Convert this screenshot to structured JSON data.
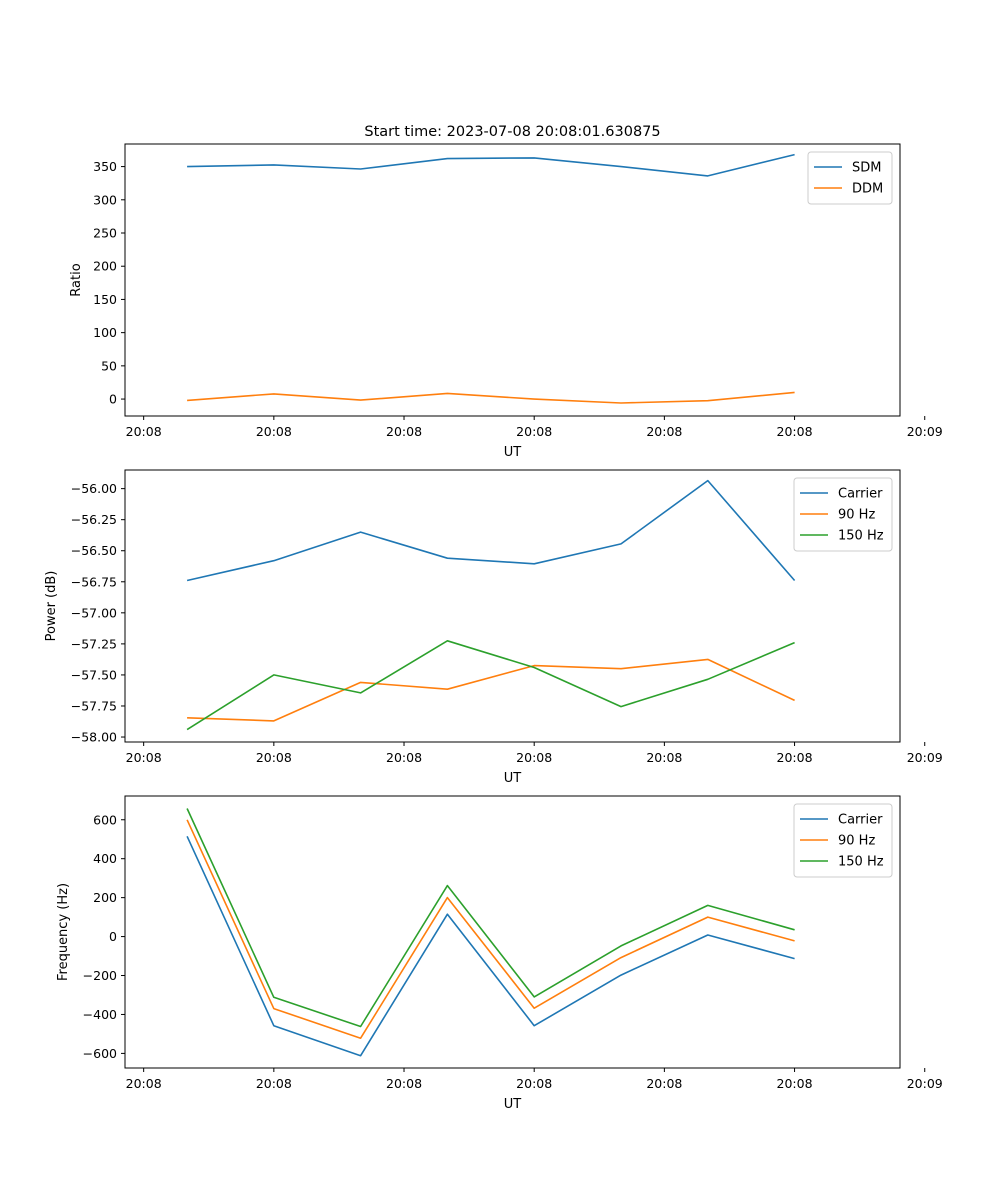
{
  "figure_title": "Start time: 2023-07-08 20:08:01.630875",
  "colors": {
    "blue": "#1f77b4",
    "orange": "#ff7f0e",
    "green": "#2ca02c"
  },
  "chart_data": [
    {
      "type": "line",
      "title": "Start time: 2023-07-08 20:08:01.630875",
      "xlabel": "UT",
      "ylabel": "Ratio",
      "x": [
        1,
        2,
        3,
        4,
        5,
        6,
        7,
        8
      ],
      "xlim": [
        0.285,
        9.215
      ],
      "xticks": [
        0.5,
        2,
        3.5,
        5,
        6.5,
        8,
        9.5
      ],
      "xticklabels": [
        "20:08",
        "20:08",
        "20:08",
        "20:08",
        "20:08",
        "20:08",
        "20:09"
      ],
      "ylim": [
        -25.5,
        384
      ],
      "yticks": [
        0,
        50,
        100,
        150,
        200,
        250,
        300,
        350
      ],
      "yticklabels": [
        "0",
        "50",
        "100",
        "150",
        "200",
        "250",
        "300",
        "350"
      ],
      "legend": "top-right",
      "series": [
        {
          "name": "SDM",
          "color": "#1f77b4",
          "values": [
            350,
            352.5,
            346.3,
            362,
            363,
            350,
            336,
            368
          ]
        },
        {
          "name": "DDM",
          "color": "#ff7f0e",
          "values": [
            -2,
            7.8,
            -1.5,
            8.5,
            0,
            -6,
            -2.5,
            10
          ]
        }
      ]
    },
    {
      "type": "line",
      "title": "",
      "xlabel": "UT",
      "ylabel": "Power (dB)",
      "x": [
        1,
        2,
        3,
        4,
        5,
        6,
        7,
        8
      ],
      "xlim": [
        0.285,
        9.215
      ],
      "xticks": [
        0.5,
        2,
        3.5,
        5,
        6.5,
        8,
        9.5
      ],
      "xticklabels": [
        "20:08",
        "20:08",
        "20:08",
        "20:08",
        "20:08",
        "20:08",
        "20:09"
      ],
      "ylim": [
        -58.04,
        -55.85
      ],
      "yticks": [
        -58.0,
        -57.75,
        -57.5,
        -57.25,
        -57.0,
        -56.75,
        -56.5,
        -56.25,
        -56.0
      ],
      "yticklabels": [
        "−58.00",
        "−57.75",
        "−57.50",
        "−57.25",
        "−57.00",
        "−56.75",
        "−56.50",
        "−56.25",
        "−56.00"
      ],
      "legend": "top-right",
      "series": [
        {
          "name": "Carrier",
          "color": "#1f77b4",
          "values": [
            -56.74,
            -56.58,
            -56.35,
            -56.56,
            -56.605,
            -56.445,
            -55.935,
            -56.74
          ]
        },
        {
          "name": "90 Hz",
          "color": "#ff7f0e",
          "values": [
            -57.845,
            -57.87,
            -57.56,
            -57.615,
            -57.425,
            -57.45,
            -57.375,
            -57.705
          ]
        },
        {
          "name": "150 Hz",
          "color": "#2ca02c",
          "values": [
            -57.94,
            -57.5,
            -57.645,
            -57.225,
            -57.44,
            -57.755,
            -57.535,
            -57.24
          ]
        }
      ]
    },
    {
      "type": "line",
      "title": "",
      "xlabel": "UT",
      "ylabel": "Frequency (Hz)",
      "x": [
        1,
        2,
        3,
        4,
        5,
        6,
        7,
        8
      ],
      "xlim": [
        0.285,
        9.215
      ],
      "xticks": [
        0.5,
        2,
        3.5,
        5,
        6.5,
        8,
        9.5
      ],
      "xticklabels": [
        "20:08",
        "20:08",
        "20:08",
        "20:08",
        "20:08",
        "20:08",
        "20:09"
      ],
      "ylim": [
        -675,
        722
      ],
      "yticks": [
        -600,
        -400,
        -200,
        0,
        200,
        400,
        600
      ],
      "yticklabels": [
        "−600",
        "−400",
        "−200",
        "0",
        "200",
        "400",
        "600"
      ],
      "legend": "top-right",
      "series": [
        {
          "name": "Carrier",
          "color": "#1f77b4",
          "values": [
            515,
            -458,
            -612,
            115,
            -458,
            -198,
            8,
            -113
          ]
        },
        {
          "name": "90 Hz",
          "color": "#ff7f0e",
          "values": [
            600,
            -370,
            -522,
            200,
            -368,
            -108,
            100,
            -22
          ]
        },
        {
          "name": "150 Hz",
          "color": "#2ca02c",
          "values": [
            658,
            -312,
            -462,
            262,
            -310,
            -48,
            160,
            35
          ]
        }
      ]
    }
  ]
}
